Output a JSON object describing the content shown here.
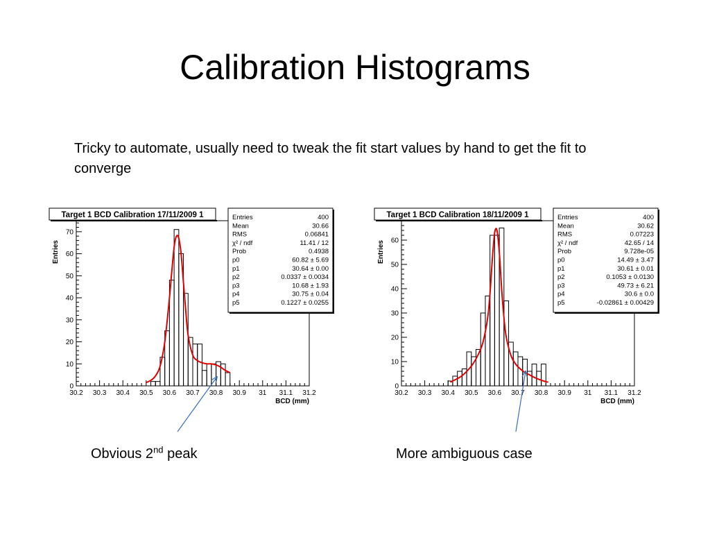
{
  "slide": {
    "title": "Calibration Histograms",
    "body": "Tricky to automate, usually need to tweak the fit start values by hand to get the fit to converge",
    "caption_left": {
      "text": "Obvious 2",
      "sup": "nd",
      "tail": " peak"
    },
    "caption_right": "More ambiguous case"
  },
  "colors": {
    "histogram": "#000000",
    "fit": "#e00000",
    "arrow": "#3a6ec0"
  },
  "chart_data": [
    {
      "type": "bar",
      "title": "Target 1 BCD Calibration 17/11/2009 1",
      "xlabel": "BCD (mm)",
      "ylabel": "Entries",
      "xlim": [
        30.2,
        31.2
      ],
      "ylim": [
        0,
        75
      ],
      "xticks": [
        30.2,
        30.3,
        30.4,
        30.5,
        30.6,
        30.7,
        30.8,
        30.9,
        31,
        31.1,
        31.2
      ],
      "xtick_labels": [
        "30.2",
        "30.3",
        "30.4",
        "30.5",
        "30.6",
        "30.7",
        "30.8",
        "30.9",
        "31",
        "31.1",
        "31.2"
      ],
      "yticks": [
        0,
        10,
        20,
        30,
        40,
        50,
        60,
        70
      ],
      "bin_width": 0.02,
      "bin_starts": [
        30.5,
        30.52,
        30.54,
        30.56,
        30.58,
        30.6,
        30.62,
        30.64,
        30.66,
        30.68,
        30.7,
        30.72,
        30.74,
        30.76,
        30.78,
        30.8,
        30.82,
        30.84
      ],
      "values": [
        0,
        2,
        2,
        13,
        25,
        48,
        71,
        60,
        42,
        22,
        19,
        19,
        7,
        10,
        10,
        11,
        10,
        6
      ],
      "fit_curve": {
        "x": [
          30.5,
          30.52,
          30.54,
          30.56,
          30.58,
          30.6,
          30.61,
          30.62,
          30.63,
          30.64,
          30.65,
          30.66,
          30.67,
          30.68,
          30.7,
          30.72,
          30.74,
          30.76,
          30.78,
          30.8,
          30.82,
          30.84,
          30.86
        ],
        "y": [
          1.5,
          2.5,
          4.5,
          9,
          20,
          40,
          52,
          63,
          68,
          67,
          60,
          47,
          34,
          23,
          14,
          11.5,
          10.5,
          10,
          10,
          9.5,
          8.5,
          7,
          6
        ]
      },
      "stats": [
        {
          "label": "Entries",
          "value": "400"
        },
        {
          "label": "Mean",
          "value": "30.66"
        },
        {
          "label": "RMS",
          "value": "0.06841"
        },
        {
          "label": "χ² / ndf",
          "value": "11.41 / 12"
        },
        {
          "label": "Prob",
          "value": "0.4938"
        },
        {
          "label": "p0",
          "value": "60.82 ± 5.69"
        },
        {
          "label": "p1",
          "value": "30.64 ± 0.00"
        },
        {
          "label": "p2",
          "value": "0.0337 ± 0.0034"
        },
        {
          "label": "p3",
          "value": "10.68 ± 1.93"
        },
        {
          "label": "p4",
          "value": "30.75 ± 0.04"
        },
        {
          "label": "p5",
          "value": "0.1227 ± 0.0255"
        }
      ]
    },
    {
      "type": "bar",
      "title": "Target 1 BCD Calibration 18/11/2009 1",
      "xlabel": "BCD (mm)",
      "ylabel": "Entries",
      "xlim": [
        30.2,
        31.2
      ],
      "ylim": [
        0,
        68
      ],
      "xticks": [
        30.2,
        30.3,
        30.4,
        30.5,
        30.6,
        30.7,
        30.8,
        30.9,
        31,
        31.1,
        31.2
      ],
      "xtick_labels": [
        "30.2",
        "30.3",
        "30.4",
        "30.5",
        "30.6",
        "30.7",
        "30.8",
        "30.9",
        "31",
        "31.1",
        "31.2"
      ],
      "yticks": [
        0,
        10,
        20,
        30,
        40,
        50,
        60
      ],
      "bin_width": 0.02,
      "bin_starts": [
        30.38,
        30.4,
        30.42,
        30.44,
        30.46,
        30.48,
        30.5,
        30.52,
        30.54,
        30.56,
        30.58,
        30.6,
        30.62,
        30.64,
        30.66,
        30.68,
        30.7,
        30.72,
        30.74,
        30.76,
        30.78,
        30.8,
        30.82
      ],
      "values": [
        0,
        2,
        4,
        6,
        7,
        14,
        12,
        15,
        30,
        37,
        62,
        62,
        65,
        35,
        18,
        14,
        12,
        11,
        6,
        9,
        6,
        9,
        0
      ],
      "fit_curve": {
        "x": [
          30.41,
          30.43,
          30.45,
          30.47,
          30.49,
          30.51,
          30.53,
          30.55,
          30.57,
          30.58,
          30.59,
          30.6,
          30.61,
          30.62,
          30.63,
          30.64,
          30.65,
          30.67,
          30.69,
          30.71,
          30.73,
          30.75,
          30.77,
          30.79,
          30.81,
          30.83
        ],
        "y": [
          1.5,
          2.5,
          3.5,
          5,
          7,
          9.5,
          13,
          18,
          28,
          38,
          52,
          63,
          64,
          55,
          40,
          28,
          20,
          12.5,
          9,
          7,
          5.5,
          4.5,
          3.5,
          2.7,
          2,
          1.5
        ]
      },
      "stats": [
        {
          "label": "Entries",
          "value": "400"
        },
        {
          "label": "Mean",
          "value": "30.62"
        },
        {
          "label": "RMS",
          "value": "0.07223"
        },
        {
          "label": "χ² / ndf",
          "value": "42.65 / 14"
        },
        {
          "label": "Prob",
          "value": "9.728e-05"
        },
        {
          "label": "p0",
          "value": "14.49 ± 3.47"
        },
        {
          "label": "p1",
          "value": "30.61 ± 0.01"
        },
        {
          "label": "p2",
          "value": "0.1053 ± 0.0130"
        },
        {
          "label": "p3",
          "value": "49.73 ± 6.21"
        },
        {
          "label": "p4",
          "value": "30.6 ± 0.0"
        },
        {
          "label": "p5",
          "value": "-0.02861 ± 0.00429"
        }
      ]
    }
  ]
}
